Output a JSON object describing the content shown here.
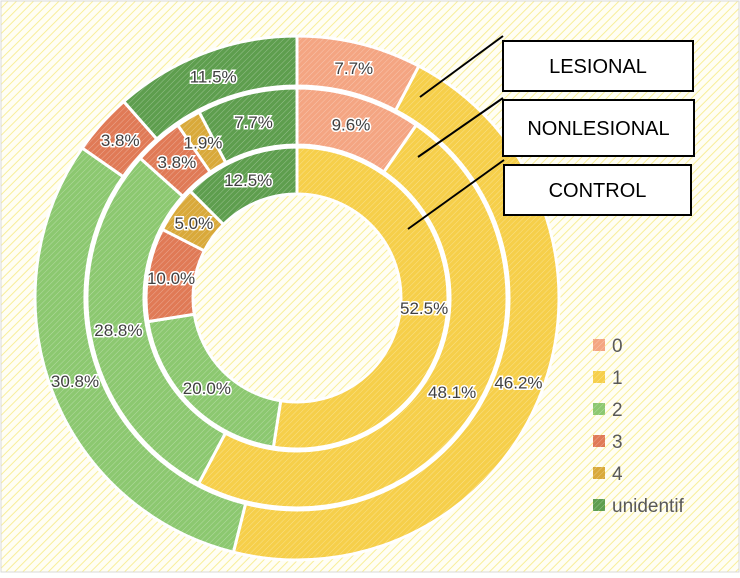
{
  "chart_data": {
    "type": "doughnut",
    "categories": [
      "0",
      "1",
      "2",
      "3",
      "4",
      "unidentif"
    ],
    "colors": {
      "0": "#F4A582",
      "1": "#F6CF4A",
      "2": "#8CC870",
      "3": "#E07A56",
      "4": "#D9A93A",
      "unidentif": "#5E9E4E"
    },
    "series": [
      {
        "name": "LESIONAL",
        "values": [
          7.7,
          46.2,
          30.8,
          3.8,
          0,
          11.5
        ],
        "labels": [
          "7.7%",
          "46.2%",
          "30.8%",
          "3.8%",
          "",
          "11.5%"
        ]
      },
      {
        "name": "NONLESIONAL",
        "values": [
          9.6,
          48.1,
          28.8,
          3.8,
          1.9,
          7.7
        ],
        "labels": [
          "9.6%",
          "48.1%",
          "28.8%",
          "3.8%",
          "1.9%",
          "7.7%"
        ]
      },
      {
        "name": "CONTROL",
        "values": [
          0,
          52.5,
          20.0,
          10.0,
          5.0,
          12.5
        ],
        "labels": [
          "",
          "52.5%",
          "20.0%",
          "10.0%",
          "5.0%",
          "12.5%"
        ]
      }
    ],
    "legend": {
      "position": "right",
      "entries": [
        "0",
        "1",
        "2",
        "3",
        "4",
        "unidentif"
      ]
    },
    "callouts": [
      "LESIONAL",
      "NONLESIONAL",
      "CONTROL"
    ]
  }
}
